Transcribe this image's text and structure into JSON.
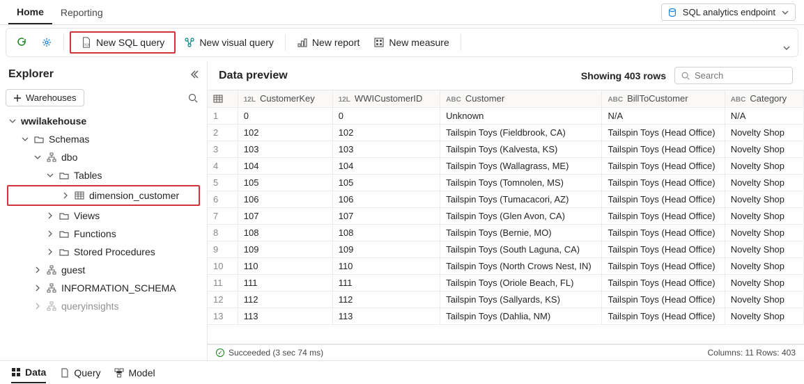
{
  "topTabs": {
    "home": "Home",
    "reporting": "Reporting"
  },
  "endpoint": {
    "label": "SQL analytics endpoint"
  },
  "ribbon": {
    "newSqlQuery": "New SQL query",
    "newVisualQuery": "New visual query",
    "newReport": "New report",
    "newMeasure": "New measure"
  },
  "explorer": {
    "title": "Explorer",
    "warehousesBtn": "Warehouses",
    "tree": {
      "root": "wwilakehouse",
      "schemas": "Schemas",
      "dbo": "dbo",
      "tables": "Tables",
      "dimension_customer": "dimension_customer",
      "views": "Views",
      "functions": "Functions",
      "storedProcs": "Stored Procedures",
      "guest": "guest",
      "infoSchema": "INFORMATION_SCHEMA",
      "queryinsights": "queryinsights"
    }
  },
  "preview": {
    "title": "Data preview",
    "rowCount": "Showing 403 rows",
    "searchPlaceholder": "Search",
    "columns": {
      "customerKey": {
        "type": "12L",
        "label": "CustomerKey"
      },
      "wwiCustomerId": {
        "type": "12L",
        "label": "WWICustomerID"
      },
      "customer": {
        "type": "ABC",
        "label": "Customer"
      },
      "billTo": {
        "type": "ABC",
        "label": "BillToCustomer"
      },
      "category": {
        "type": "ABC",
        "label": "Category"
      }
    },
    "rows": [
      {
        "n": "1",
        "ck": "0",
        "wwi": "0",
        "cust": "Unknown",
        "bill": "N/A",
        "cat": "N/A"
      },
      {
        "n": "2",
        "ck": "102",
        "wwi": "102",
        "cust": "Tailspin Toys (Fieldbrook, CA)",
        "bill": "Tailspin Toys (Head Office)",
        "cat": "Novelty Shop"
      },
      {
        "n": "3",
        "ck": "103",
        "wwi": "103",
        "cust": "Tailspin Toys (Kalvesta, KS)",
        "bill": "Tailspin Toys (Head Office)",
        "cat": "Novelty Shop"
      },
      {
        "n": "4",
        "ck": "104",
        "wwi": "104",
        "cust": "Tailspin Toys (Wallagrass, ME)",
        "bill": "Tailspin Toys (Head Office)",
        "cat": "Novelty Shop"
      },
      {
        "n": "5",
        "ck": "105",
        "wwi": "105",
        "cust": "Tailspin Toys (Tomnolen, MS)",
        "bill": "Tailspin Toys (Head Office)",
        "cat": "Novelty Shop"
      },
      {
        "n": "6",
        "ck": "106",
        "wwi": "106",
        "cust": "Tailspin Toys (Tumacacori, AZ)",
        "bill": "Tailspin Toys (Head Office)",
        "cat": "Novelty Shop"
      },
      {
        "n": "7",
        "ck": "107",
        "wwi": "107",
        "cust": "Tailspin Toys (Glen Avon, CA)",
        "bill": "Tailspin Toys (Head Office)",
        "cat": "Novelty Shop"
      },
      {
        "n": "8",
        "ck": "108",
        "wwi": "108",
        "cust": "Tailspin Toys (Bernie, MO)",
        "bill": "Tailspin Toys (Head Office)",
        "cat": "Novelty Shop"
      },
      {
        "n": "9",
        "ck": "109",
        "wwi": "109",
        "cust": "Tailspin Toys (South Laguna, CA)",
        "bill": "Tailspin Toys (Head Office)",
        "cat": "Novelty Shop"
      },
      {
        "n": "10",
        "ck": "110",
        "wwi": "110",
        "cust": "Tailspin Toys (North Crows Nest, IN)",
        "bill": "Tailspin Toys (Head Office)",
        "cat": "Novelty Shop"
      },
      {
        "n": "11",
        "ck": "111",
        "wwi": "111",
        "cust": "Tailspin Toys (Oriole Beach, FL)",
        "bill": "Tailspin Toys (Head Office)",
        "cat": "Novelty Shop"
      },
      {
        "n": "12",
        "ck": "112",
        "wwi": "112",
        "cust": "Tailspin Toys (Sallyards, KS)",
        "bill": "Tailspin Toys (Head Office)",
        "cat": "Novelty Shop"
      },
      {
        "n": "13",
        "ck": "113",
        "wwi": "113",
        "cust": "Tailspin Toys (Dahlia, NM)",
        "bill": "Tailspin Toys (Head Office)",
        "cat": "Novelty Shop"
      }
    ],
    "status": {
      "text": "Succeeded (3 sec 74 ms)",
      "right": "Columns: 11 Rows: 403"
    }
  },
  "bottomTabs": {
    "data": "Data",
    "query": "Query",
    "model": "Model"
  },
  "colors": {
    "highlight": "#d13438",
    "border": "#e5e5e5",
    "success": "#107c10",
    "iconBlue": "#0078d4",
    "iconTeal": "#038387"
  }
}
